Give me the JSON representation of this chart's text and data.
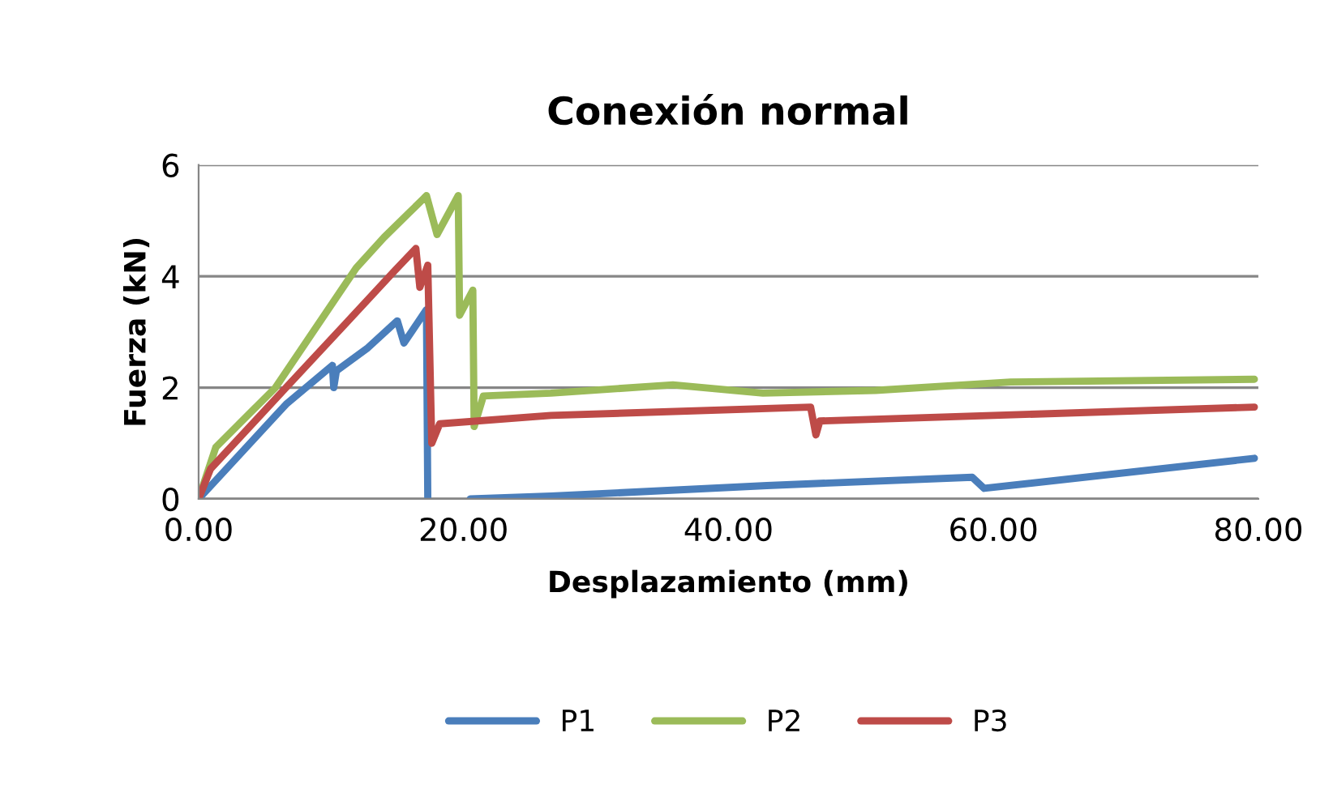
{
  "chart_data": {
    "type": "line",
    "title": "Conexión normal",
    "xlabel": "Desplazamiento (mm)",
    "ylabel": "Fuerza (kN)",
    "xlim": [
      0,
      80
    ],
    "xticks": [
      {
        "value": 0,
        "label": "0.00"
      },
      {
        "value": 20,
        "label": "20.00"
      },
      {
        "value": 40,
        "label": "40.00"
      },
      {
        "value": 60,
        "label": "60.00"
      },
      {
        "value": 80,
        "label": "80.00"
      }
    ],
    "ylim": [
      0,
      6
    ],
    "yticks": [
      0,
      2,
      4,
      6
    ],
    "grid": "y",
    "legend": "bottom",
    "marker": "none",
    "line_style": "solid",
    "series": [
      {
        "name": "P1",
        "color": "#4a7ebb",
        "x": [
          0,
          6.6,
          10.1,
          10.2,
          10.4,
          12.7,
          15.0,
          15.5,
          17.2,
          17.3,
          19.0,
          20.5,
          26.6,
          42.9,
          58.4,
          59.3,
          79.7
        ],
        "values": [
          0,
          1.7,
          2.4,
          2.0,
          2.3,
          2.7,
          3.2,
          2.8,
          3.4,
          0,
          null,
          0,
          0.05,
          0.24,
          0.39,
          0.19,
          0.73
        ]
      },
      {
        "name": "P2",
        "color": "#9bbb59",
        "x": [
          0,
          1.3,
          5.8,
          11.9,
          14.0,
          17.0,
          17.2,
          18.0,
          19.6,
          19.7,
          20.7,
          20.8,
          21.5,
          26.6,
          35.8,
          42.6,
          51.1,
          61.3,
          79.7
        ],
        "values": [
          0,
          0.93,
          2.0,
          4.15,
          4.7,
          5.4,
          5.45,
          4.75,
          5.45,
          3.3,
          3.75,
          1.3,
          1.85,
          1.9,
          2.05,
          1.9,
          1.95,
          2.1,
          2.15
        ]
      },
      {
        "name": "P3",
        "color": "#be4b48",
        "x": [
          0,
          0.9,
          6.6,
          11.1,
          14.8,
          16.4,
          16.7,
          17.3,
          17.6,
          18.2,
          26.6,
          46.2,
          46.6,
          46.9,
          79.7
        ],
        "values": [
          0,
          0.54,
          2.0,
          3.15,
          4.1,
          4.5,
          3.8,
          4.2,
          1.0,
          1.35,
          1.5,
          1.65,
          1.15,
          1.4,
          1.65
        ]
      }
    ]
  }
}
